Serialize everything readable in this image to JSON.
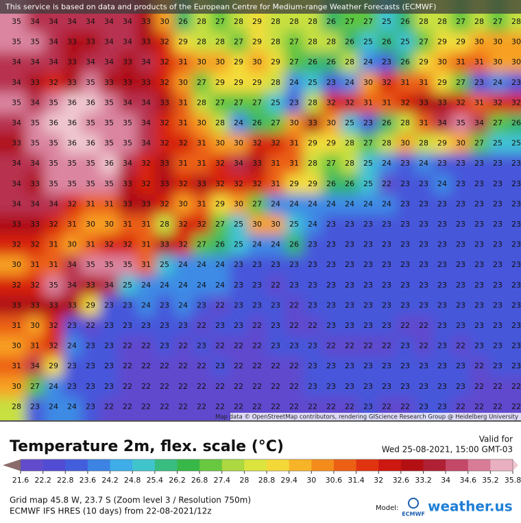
{
  "notice": "This service is based on data and products of the European Centre for Medium-range Weather Forecasts (ECMWF)",
  "map": {
    "rows": [
      [
        35,
        34,
        34,
        34,
        34,
        34,
        34,
        33,
        30,
        26,
        28,
        27,
        28,
        29,
        28,
        28,
        28,
        26,
        27,
        27,
        25,
        26,
        28,
        28,
        27,
        28,
        27,
        28
      ],
      [
        35,
        35,
        34,
        33,
        33,
        34,
        34,
        33,
        32,
        29,
        28,
        28,
        27,
        29,
        28,
        27,
        28,
        28,
        26,
        25,
        26,
        25,
        27,
        29,
        29,
        30,
        30,
        30
      ],
      [
        34,
        34,
        34,
        33,
        34,
        34,
        33,
        34,
        32,
        31,
        30,
        30,
        29,
        30,
        29,
        27,
        26,
        26,
        28,
        24,
        23,
        26,
        29,
        30,
        31,
        31,
        30,
        30
      ],
      [
        34,
        33,
        32,
        33,
        35,
        33,
        33,
        33,
        32,
        30,
        27,
        29,
        29,
        29,
        28,
        24,
        25,
        23,
        24,
        30,
        32,
        31,
        31,
        29,
        27,
        23,
        24,
        23
      ],
      [
        35,
        34,
        35,
        36,
        36,
        35,
        34,
        34,
        33,
        31,
        28,
        27,
        27,
        27,
        25,
        23,
        28,
        32,
        32,
        31,
        31,
        32,
        33,
        33,
        32,
        31,
        32,
        32
      ],
      [
        34,
        35,
        36,
        36,
        35,
        35,
        35,
        34,
        32,
        31,
        30,
        28,
        24,
        26,
        27,
        30,
        33,
        30,
        25,
        23,
        26,
        28,
        31,
        34,
        35,
        34,
        27,
        26
      ],
      [
        33,
        35,
        35,
        36,
        36,
        35,
        35,
        34,
        32,
        32,
        31,
        30,
        30,
        32,
        32,
        31,
        29,
        29,
        28,
        27,
        28,
        30,
        28,
        29,
        30,
        27,
        25,
        25
      ],
      [
        34,
        34,
        35,
        35,
        35,
        36,
        34,
        32,
        33,
        31,
        31,
        32,
        34,
        33,
        31,
        31,
        28,
        27,
        28,
        25,
        24,
        23,
        24,
        23,
        23,
        23,
        23,
        23
      ],
      [
        34,
        33,
        35,
        35,
        35,
        35,
        33,
        32,
        33,
        32,
        33,
        32,
        32,
        32,
        31,
        29,
        29,
        26,
        26,
        25,
        22,
        23,
        23,
        24,
        23,
        23,
        23,
        23
      ],
      [
        34,
        34,
        34,
        32,
        31,
        31,
        33,
        33,
        32,
        30,
        31,
        29,
        30,
        27,
        24,
        24,
        24,
        24,
        24,
        24,
        24,
        23,
        23,
        23,
        23,
        23,
        23,
        23
      ],
      [
        33,
        33,
        32,
        31,
        30,
        30,
        31,
        31,
        28,
        32,
        32,
        27,
        25,
        30,
        30,
        25,
        24,
        23,
        23,
        23,
        23,
        23,
        23,
        23,
        23,
        23,
        23,
        23
      ],
      [
        32,
        32,
        31,
        30,
        31,
        32,
        32,
        31,
        33,
        32,
        27,
        26,
        25,
        24,
        24,
        26,
        23,
        23,
        23,
        23,
        23,
        23,
        23,
        23,
        23,
        23,
        23,
        23
      ],
      [
        30,
        31,
        31,
        34,
        35,
        35,
        35,
        31,
        25,
        24,
        24,
        24,
        23,
        23,
        23,
        23,
        23,
        23,
        23,
        23,
        23,
        23,
        23,
        23,
        23,
        23,
        23,
        23
      ],
      [
        32,
        32,
        35,
        34,
        33,
        34,
        25,
        24,
        24,
        24,
        24,
        24,
        23,
        23,
        22,
        23,
        23,
        23,
        23,
        23,
        23,
        23,
        23,
        23,
        23,
        23,
        23,
        23
      ],
      [
        33,
        33,
        33,
        33,
        29,
        23,
        23,
        24,
        23,
        24,
        23,
        22,
        23,
        23,
        23,
        22,
        23,
        23,
        23,
        23,
        23,
        23,
        23,
        23,
        23,
        23,
        23,
        23
      ],
      [
        31,
        30,
        32,
        23,
        22,
        23,
        23,
        23,
        23,
        23,
        22,
        23,
        23,
        22,
        23,
        22,
        22,
        23,
        23,
        23,
        23,
        22,
        22,
        23,
        23,
        23,
        23,
        23
      ],
      [
        30,
        31,
        32,
        24,
        23,
        23,
        22,
        22,
        23,
        22,
        23,
        22,
        22,
        22,
        23,
        23,
        23,
        22,
        22,
        22,
        22,
        23,
        22,
        23,
        22,
        23,
        23,
        23
      ],
      [
        31,
        34,
        29,
        23,
        23,
        23,
        22,
        22,
        22,
        22,
        22,
        23,
        22,
        22,
        22,
        22,
        23,
        23,
        23,
        23,
        23,
        23,
        23,
        23,
        23,
        22,
        23,
        23
      ],
      [
        30,
        27,
        24,
        23,
        23,
        23,
        22,
        22,
        22,
        22,
        22,
        22,
        22,
        22,
        22,
        22,
        23,
        23,
        23,
        23,
        23,
        23,
        23,
        23,
        23,
        22,
        22,
        22
      ],
      [
        28,
        23,
        24,
        24,
        23,
        22,
        22,
        22,
        22,
        22,
        22,
        22,
        22,
        22,
        22,
        22,
        22,
        22,
        22,
        23,
        22,
        22,
        23,
        23,
        22,
        22,
        22,
        22
      ]
    ]
  },
  "attribution": "Map data © OpenStreetMap contributors, rendering GIScience Research Group @ Heidelberg University",
  "legend": {
    "title": "Temperature 2m, flex. scale (°C)",
    "valid_label": "Valid for",
    "valid_time": "Wed 25-08-2021, 15:00 GMT-03",
    "stops": [
      21.6,
      22.2,
      22.8,
      23.6,
      24.2,
      24.8,
      25.4,
      26.2,
      26.8,
      27.4,
      28,
      28.8,
      29.4,
      30,
      30.6,
      31.4,
      32,
      32.6,
      33.2,
      34,
      34.6,
      35.2,
      35.8
    ],
    "colors": [
      "#6b4fc8",
      "#5a48d0",
      "#4a50d8",
      "#3c6ce0",
      "#3c9ae8",
      "#40c0e8",
      "#40c8b0",
      "#30b050",
      "#40c040",
      "#90d040",
      "#c8e040",
      "#f0e840",
      "#f8c830",
      "#f8a020",
      "#f07818",
      "#e84810",
      "#d82010",
      "#c01010",
      "#a81018",
      "#b83050",
      "#d06080",
      "#e098b0",
      "#f0c8d0"
    ]
  },
  "footer": {
    "grid": "Grid map 45.8 W, 23.7 S (Zoom level 3 / Resolution 750m)",
    "model_run": "ECMWF IFS HRES (10 days) from 22-08-2021/12z"
  },
  "logo": {
    "model_label": "Model:",
    "ecmwf": "ECMWF",
    "brand": "weather.us"
  }
}
